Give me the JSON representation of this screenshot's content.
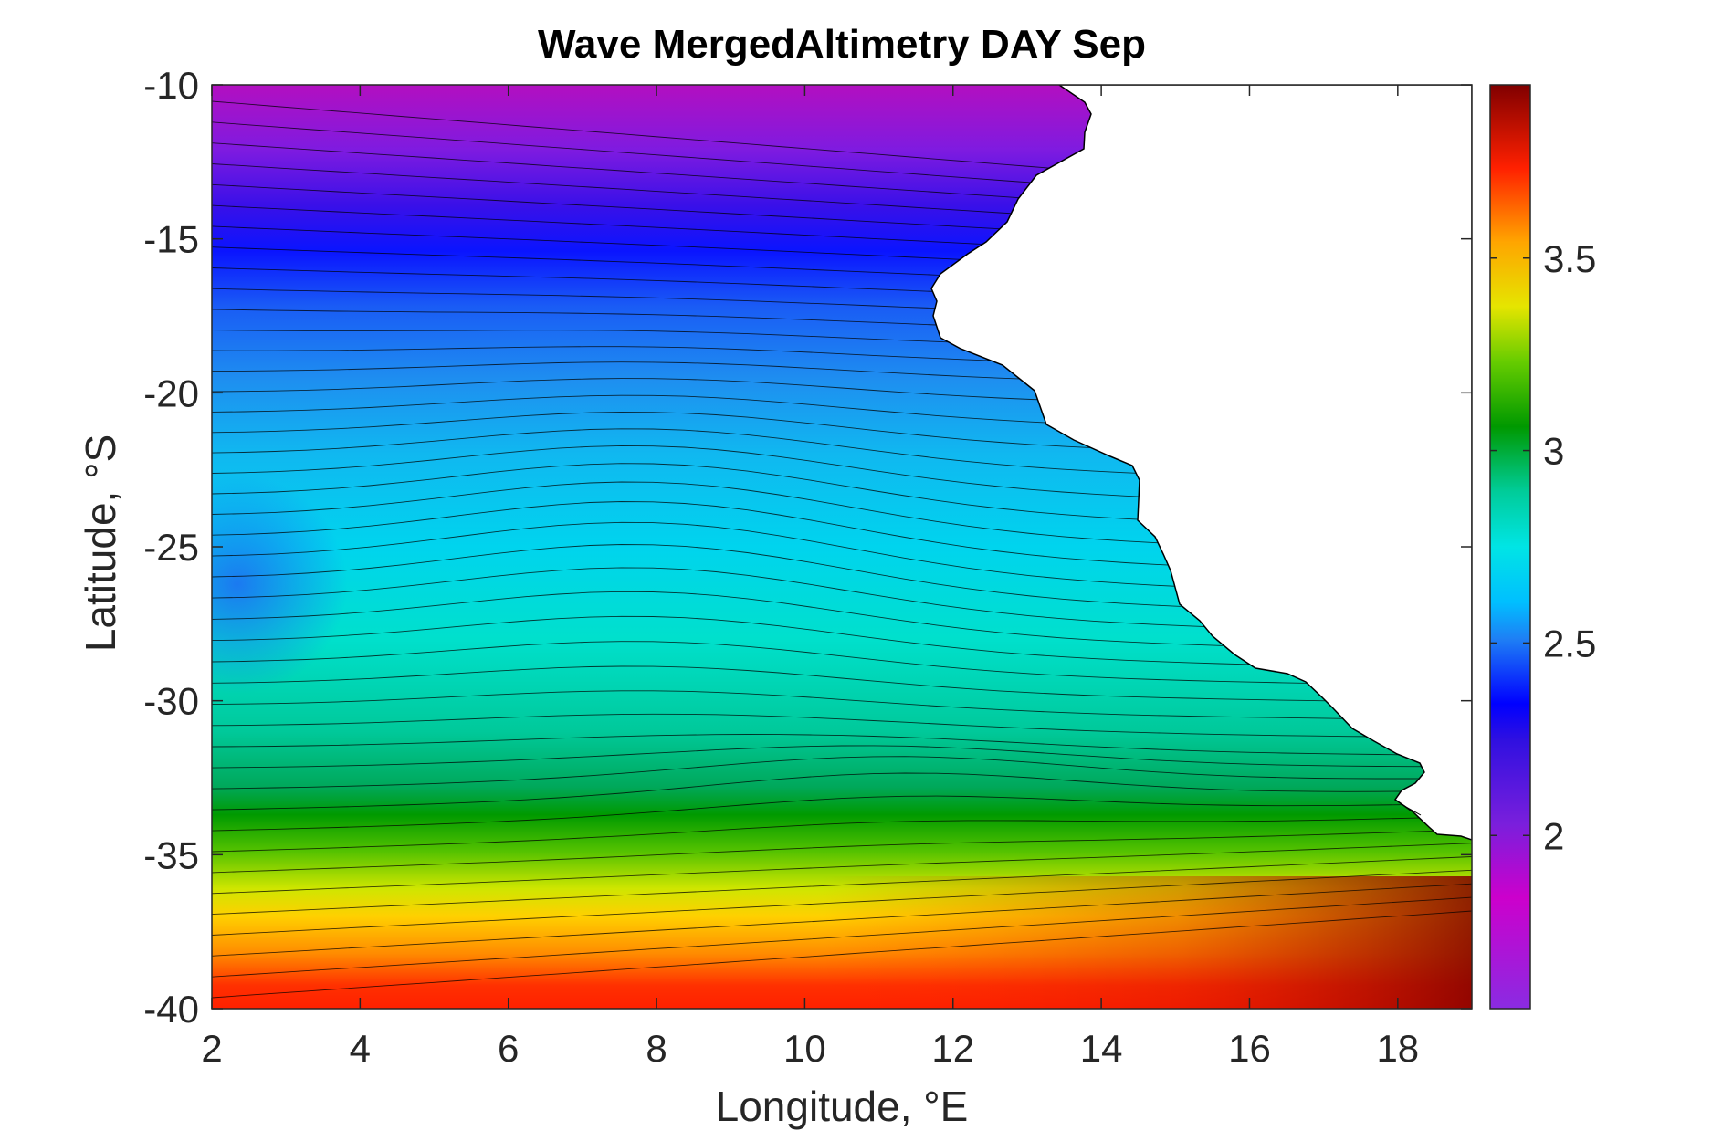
{
  "chart_data": {
    "type": "heatmap",
    "subtype": "filled-contour-map",
    "title": "Wave MergedAltimetry DAY Sep",
    "xlabel": "Longitude, °E",
    "ylabel": "Latitude, °S",
    "xlim": [
      2,
      19
    ],
    "ylim": [
      -40,
      -10
    ],
    "xticks": [
      "2",
      "4",
      "6",
      "8",
      "10",
      "12",
      "14",
      "16",
      "18"
    ],
    "yticks": [
      "-10",
      "-15",
      "-20",
      "-25",
      "-30",
      "-35",
      "-40"
    ],
    "colorbar": {
      "limits": [
        1.55,
        3.95
      ],
      "ticks": [
        "2",
        "2.5",
        "3",
        "3.5"
      ],
      "colormap": "rainbow",
      "colors": [
        "#8a2be2",
        "#cc00cc",
        "#6b1fd6",
        "#0000ff",
        "#1e90ff",
        "#00bfff",
        "#00e5e5",
        "#00cc99",
        "#009900",
        "#66cc00",
        "#e5e500",
        "#ffa500",
        "#ff2000",
        "#800000"
      ]
    },
    "land_color": "#ffffff",
    "grid": false,
    "description_values": {
      "north_min_value": 1.9,
      "south_max_value": 3.9
    }
  }
}
